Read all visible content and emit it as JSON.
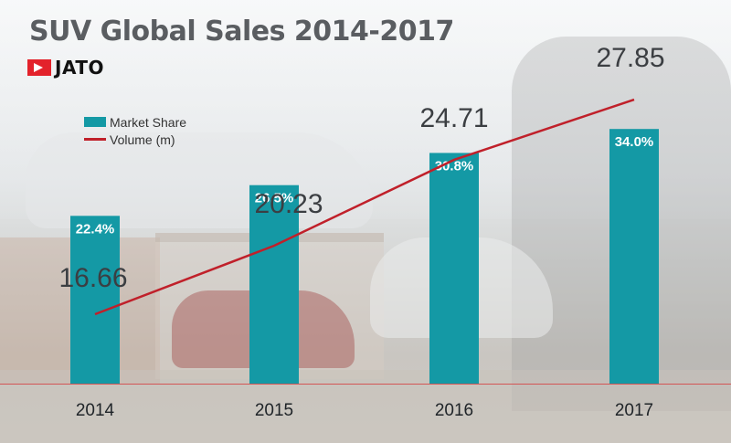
{
  "title": "SUV Global Sales 2014-2017",
  "logo": {
    "brand": "JATO"
  },
  "colors": {
    "bar": "#1499a5",
    "line": "#c0202a",
    "title": "#5a5d61",
    "logo_red": "#e3222b"
  },
  "chart_data": {
    "type": "bar",
    "title": "SUV Global Sales 2014-2017",
    "xlabel": "",
    "ylabel": "",
    "categories": [
      "2014",
      "2015",
      "2016",
      "2017"
    ],
    "legend_position": "top-left",
    "grid": false,
    "series": [
      {
        "name": "Market Share",
        "kind": "bar",
        "values": [
          22.4,
          26.5,
          30.8,
          34.0
        ],
        "labels": [
          "22.4%",
          "26.5%",
          "30.8%",
          "34.0%"
        ]
      },
      {
        "name": "Volume (m)",
        "kind": "line",
        "values": [
          16.66,
          20.23,
          24.71,
          27.85
        ],
        "labels": [
          "16.66",
          "20.23",
          "24.71",
          "27.85"
        ]
      }
    ]
  }
}
